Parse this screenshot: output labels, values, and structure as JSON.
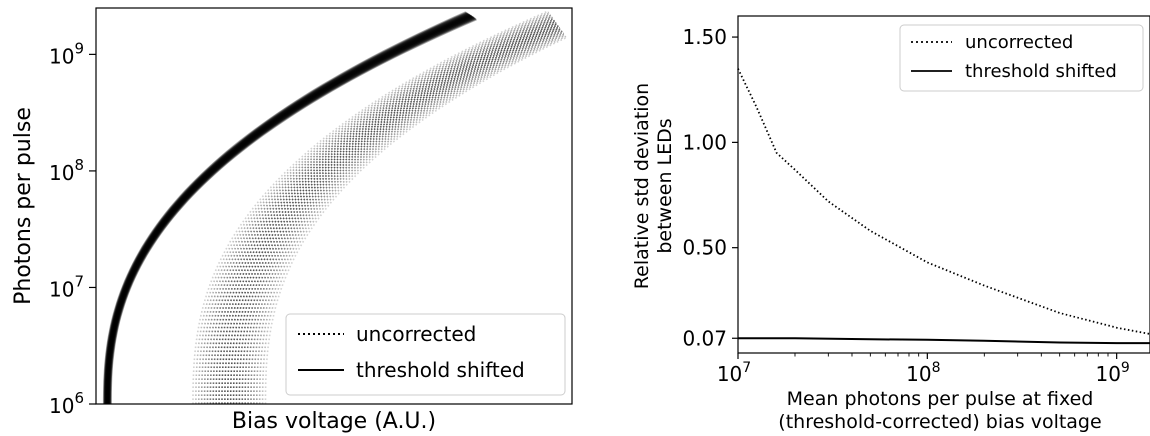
{
  "chart_data": [
    {
      "type": "line",
      "xlabel": "Bias voltage (A.U.)",
      "ylabel": "Photons per pulse",
      "yscale": "log",
      "ylim": [
        1000000,
        2500000000
      ],
      "yticks": [
        {
          "value": 1000000,
          "base": "10",
          "exp": "6"
        },
        {
          "value": 10000000,
          "base": "10",
          "exp": "7"
        },
        {
          "value": 100000000,
          "base": "10",
          "exp": "8"
        },
        {
          "value": 1000000000,
          "base": "10",
          "exp": "9"
        }
      ],
      "grid": false,
      "legend_position": "lower-right",
      "series": [
        {
          "name": "uncorrected",
          "style": "dotted",
          "color": "#000000"
        },
        {
          "name": "threshold shifted",
          "style": "solid",
          "color": "#000000"
        }
      ]
    },
    {
      "type": "line",
      "xlabel_line1": "Mean photons per pulse at fixed",
      "xlabel_line2": "(threshold-corrected) bias voltage",
      "ylabel_line1": "Relative std deviation",
      "ylabel_line2": "between LEDs",
      "xscale": "log",
      "xlim": [
        10000000,
        1500000000
      ],
      "ylim": [
        0,
        1.6
      ],
      "yticks": [
        0.07,
        0.5,
        1.0,
        1.5
      ],
      "ytick_labels": [
        "0.07",
        "0.50",
        "1.00",
        "1.50"
      ],
      "xticks": [
        {
          "value": 10000000,
          "base": "10",
          "exp": "7"
        },
        {
          "value": 100000000,
          "base": "10",
          "exp": "8"
        },
        {
          "value": 1000000000,
          "base": "10",
          "exp": "9"
        }
      ],
      "grid": false,
      "legend_position": "top-right",
      "series": [
        {
          "name": "uncorrected",
          "style": "dotted",
          "color": "#000000",
          "x": [
            10000000,
            12500000,
            16000000,
            20000000,
            30000000,
            50000000,
            100000000,
            200000000,
            500000000,
            1000000000,
            1500000000
          ],
          "y": [
            1.35,
            1.17,
            0.95,
            0.87,
            0.72,
            0.58,
            0.43,
            0.32,
            0.19,
            0.12,
            0.09
          ]
        },
        {
          "name": "threshold shifted",
          "style": "solid",
          "color": "#000000",
          "x": [
            10000000,
            20000000,
            50000000,
            100000000,
            200000000,
            500000000,
            1000000000,
            1500000000
          ],
          "y": [
            0.07,
            0.07,
            0.065,
            0.063,
            0.058,
            0.05,
            0.047,
            0.047
          ]
        }
      ]
    }
  ]
}
